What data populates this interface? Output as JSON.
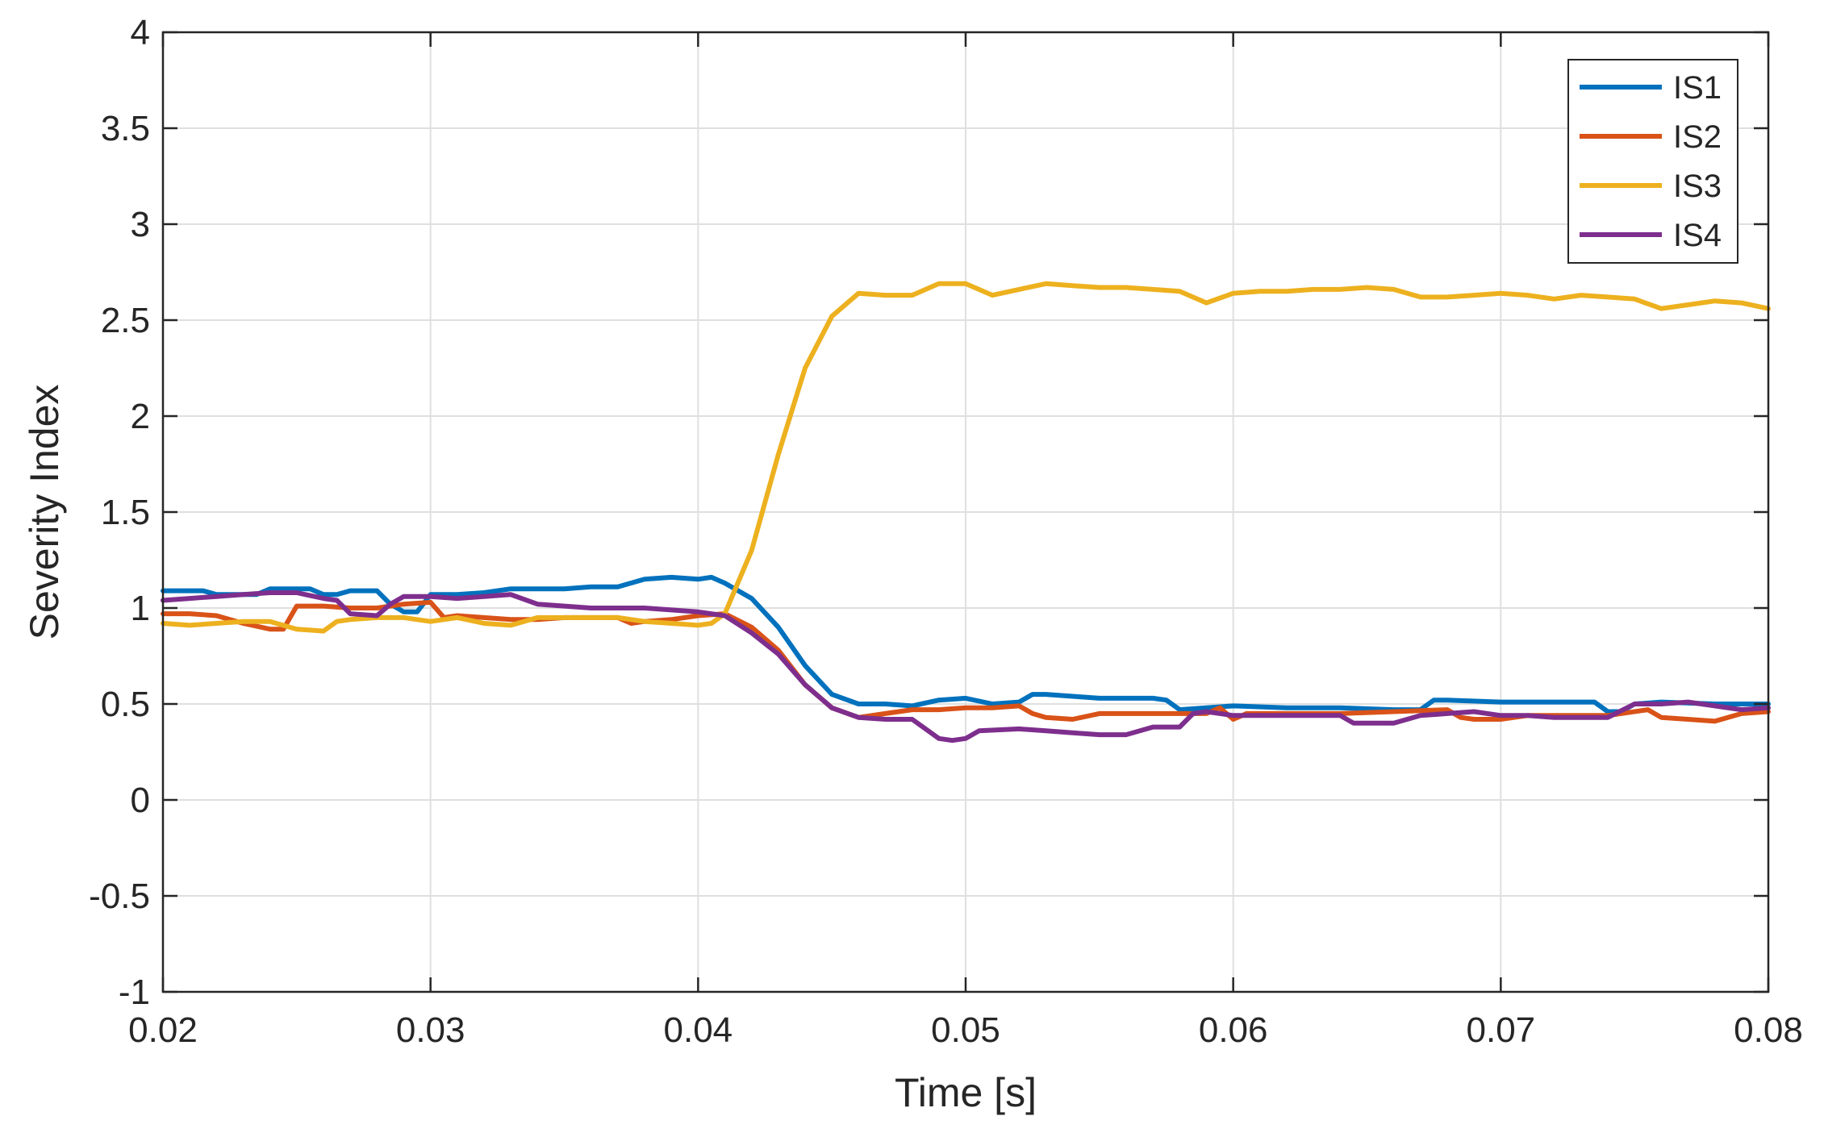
{
  "chart_data": {
    "type": "line",
    "title": "",
    "xlabel": "Time [s]",
    "ylabel": "Severity Index",
    "xlim": [
      0.02,
      0.08
    ],
    "ylim": [
      -1,
      4
    ],
    "x_ticks": [
      0.02,
      0.03,
      0.04,
      0.05,
      0.06,
      0.07,
      0.08
    ],
    "x_tick_labels": [
      "0.02",
      "0.03",
      "0.04",
      "0.05",
      "0.06",
      "0.07",
      "0.08"
    ],
    "y_ticks": [
      -1,
      -0.5,
      0,
      0.5,
      1,
      1.5,
      2,
      2.5,
      3,
      3.5,
      4
    ],
    "y_tick_labels": [
      "-1",
      "-0.5",
      "0",
      "0.5",
      "1",
      "1.5",
      "2",
      "2.5",
      "3",
      "3.5",
      "4"
    ],
    "grid": true,
    "legend_position": "top-right",
    "series": [
      {
        "name": "IS1",
        "color": "#0072BD",
        "points": [
          [
            0.02,
            1.09
          ],
          [
            0.0215,
            1.09
          ],
          [
            0.022,
            1.07
          ],
          [
            0.0235,
            1.07
          ],
          [
            0.024,
            1.1
          ],
          [
            0.0255,
            1.1
          ],
          [
            0.026,
            1.07
          ],
          [
            0.0265,
            1.07
          ],
          [
            0.027,
            1.09
          ],
          [
            0.028,
            1.09
          ],
          [
            0.0285,
            1.02
          ],
          [
            0.029,
            0.98
          ],
          [
            0.0295,
            0.98
          ],
          [
            0.03,
            1.07
          ],
          [
            0.031,
            1.07
          ],
          [
            0.032,
            1.08
          ],
          [
            0.033,
            1.1
          ],
          [
            0.034,
            1.1
          ],
          [
            0.035,
            1.1
          ],
          [
            0.036,
            1.11
          ],
          [
            0.037,
            1.11
          ],
          [
            0.038,
            1.15
          ],
          [
            0.039,
            1.16
          ],
          [
            0.04,
            1.15
          ],
          [
            0.0405,
            1.16
          ],
          [
            0.041,
            1.13
          ],
          [
            0.042,
            1.05
          ],
          [
            0.043,
            0.9
          ],
          [
            0.044,
            0.7
          ],
          [
            0.045,
            0.55
          ],
          [
            0.046,
            0.5
          ],
          [
            0.047,
            0.5
          ],
          [
            0.048,
            0.49
          ],
          [
            0.049,
            0.52
          ],
          [
            0.05,
            0.53
          ],
          [
            0.051,
            0.5
          ],
          [
            0.052,
            0.51
          ],
          [
            0.0525,
            0.55
          ],
          [
            0.053,
            0.55
          ],
          [
            0.054,
            0.54
          ],
          [
            0.055,
            0.53
          ],
          [
            0.057,
            0.53
          ],
          [
            0.0575,
            0.52
          ],
          [
            0.058,
            0.47
          ],
          [
            0.059,
            0.48
          ],
          [
            0.06,
            0.49
          ],
          [
            0.062,
            0.48
          ],
          [
            0.064,
            0.48
          ],
          [
            0.066,
            0.47
          ],
          [
            0.067,
            0.47
          ],
          [
            0.0675,
            0.52
          ],
          [
            0.068,
            0.52
          ],
          [
            0.07,
            0.51
          ],
          [
            0.072,
            0.51
          ],
          [
            0.0735,
            0.51
          ],
          [
            0.074,
            0.46
          ],
          [
            0.0745,
            0.46
          ],
          [
            0.075,
            0.5
          ],
          [
            0.076,
            0.51
          ],
          [
            0.078,
            0.5
          ],
          [
            0.08,
            0.5
          ]
        ]
      },
      {
        "name": "IS2",
        "color": "#D95319",
        "points": [
          [
            0.02,
            0.97
          ],
          [
            0.021,
            0.97
          ],
          [
            0.022,
            0.96
          ],
          [
            0.023,
            0.92
          ],
          [
            0.024,
            0.89
          ],
          [
            0.0245,
            0.89
          ],
          [
            0.025,
            1.01
          ],
          [
            0.026,
            1.01
          ],
          [
            0.027,
            1.0
          ],
          [
            0.028,
            1.0
          ],
          [
            0.029,
            1.02
          ],
          [
            0.03,
            1.03
          ],
          [
            0.0305,
            0.95
          ],
          [
            0.031,
            0.96
          ],
          [
            0.032,
            0.95
          ],
          [
            0.033,
            0.94
          ],
          [
            0.034,
            0.94
          ],
          [
            0.035,
            0.95
          ],
          [
            0.036,
            0.95
          ],
          [
            0.037,
            0.95
          ],
          [
            0.0375,
            0.92
          ],
          [
            0.038,
            0.93
          ],
          [
            0.039,
            0.94
          ],
          [
            0.04,
            0.96
          ],
          [
            0.041,
            0.97
          ],
          [
            0.042,
            0.9
          ],
          [
            0.043,
            0.78
          ],
          [
            0.044,
            0.6
          ],
          [
            0.045,
            0.48
          ],
          [
            0.046,
            0.43
          ],
          [
            0.047,
            0.45
          ],
          [
            0.048,
            0.47
          ],
          [
            0.049,
            0.47
          ],
          [
            0.05,
            0.48
          ],
          [
            0.051,
            0.48
          ],
          [
            0.052,
            0.49
          ],
          [
            0.0525,
            0.45
          ],
          [
            0.053,
            0.43
          ],
          [
            0.054,
            0.42
          ],
          [
            0.055,
            0.45
          ],
          [
            0.056,
            0.45
          ],
          [
            0.058,
            0.45
          ],
          [
            0.059,
            0.45
          ],
          [
            0.0595,
            0.48
          ],
          [
            0.06,
            0.42
          ],
          [
            0.0605,
            0.45
          ],
          [
            0.062,
            0.45
          ],
          [
            0.064,
            0.45
          ],
          [
            0.066,
            0.46
          ],
          [
            0.068,
            0.47
          ],
          [
            0.0685,
            0.43
          ],
          [
            0.069,
            0.42
          ],
          [
            0.07,
            0.42
          ],
          [
            0.071,
            0.44
          ],
          [
            0.072,
            0.44
          ],
          [
            0.074,
            0.44
          ],
          [
            0.0755,
            0.47
          ],
          [
            0.076,
            0.43
          ],
          [
            0.077,
            0.42
          ],
          [
            0.078,
            0.41
          ],
          [
            0.079,
            0.45
          ],
          [
            0.08,
            0.46
          ]
        ]
      },
      {
        "name": "IS3",
        "color": "#EDB120",
        "points": [
          [
            0.02,
            0.92
          ],
          [
            0.021,
            0.91
          ],
          [
            0.022,
            0.92
          ],
          [
            0.023,
            0.93
          ],
          [
            0.024,
            0.93
          ],
          [
            0.025,
            0.89
          ],
          [
            0.026,
            0.88
          ],
          [
            0.0265,
            0.93
          ],
          [
            0.027,
            0.94
          ],
          [
            0.028,
            0.95
          ],
          [
            0.029,
            0.95
          ],
          [
            0.03,
            0.93
          ],
          [
            0.031,
            0.95
          ],
          [
            0.032,
            0.92
          ],
          [
            0.033,
            0.91
          ],
          [
            0.034,
            0.95
          ],
          [
            0.035,
            0.95
          ],
          [
            0.036,
            0.95
          ],
          [
            0.037,
            0.95
          ],
          [
            0.038,
            0.93
          ],
          [
            0.039,
            0.92
          ],
          [
            0.04,
            0.91
          ],
          [
            0.0405,
            0.92
          ],
          [
            0.041,
            0.97
          ],
          [
            0.042,
            1.3
          ],
          [
            0.043,
            1.8
          ],
          [
            0.044,
            2.25
          ],
          [
            0.045,
            2.52
          ],
          [
            0.046,
            2.64
          ],
          [
            0.047,
            2.63
          ],
          [
            0.048,
            2.63
          ],
          [
            0.049,
            2.69
          ],
          [
            0.05,
            2.69
          ],
          [
            0.051,
            2.63
          ],
          [
            0.052,
            2.66
          ],
          [
            0.053,
            2.69
          ],
          [
            0.054,
            2.68
          ],
          [
            0.055,
            2.67
          ],
          [
            0.056,
            2.67
          ],
          [
            0.057,
            2.66
          ],
          [
            0.058,
            2.65
          ],
          [
            0.059,
            2.59
          ],
          [
            0.06,
            2.64
          ],
          [
            0.061,
            2.65
          ],
          [
            0.062,
            2.65
          ],
          [
            0.063,
            2.66
          ],
          [
            0.064,
            2.66
          ],
          [
            0.065,
            2.67
          ],
          [
            0.066,
            2.66
          ],
          [
            0.067,
            2.62
          ],
          [
            0.068,
            2.62
          ],
          [
            0.069,
            2.63
          ],
          [
            0.07,
            2.64
          ],
          [
            0.071,
            2.63
          ],
          [
            0.072,
            2.61
          ],
          [
            0.073,
            2.63
          ],
          [
            0.074,
            2.62
          ],
          [
            0.075,
            2.61
          ],
          [
            0.076,
            2.56
          ],
          [
            0.077,
            2.58
          ],
          [
            0.078,
            2.6
          ],
          [
            0.079,
            2.59
          ],
          [
            0.08,
            2.56
          ]
        ]
      },
      {
        "name": "IS4",
        "color": "#7E2F8E",
        "points": [
          [
            0.02,
            1.04
          ],
          [
            0.021,
            1.05
          ],
          [
            0.022,
            1.06
          ],
          [
            0.023,
            1.07
          ],
          [
            0.024,
            1.08
          ],
          [
            0.025,
            1.08
          ],
          [
            0.026,
            1.05
          ],
          [
            0.0265,
            1.04
          ],
          [
            0.027,
            0.97
          ],
          [
            0.028,
            0.96
          ],
          [
            0.0285,
            1.02
          ],
          [
            0.029,
            1.06
          ],
          [
            0.03,
            1.06
          ],
          [
            0.031,
            1.05
          ],
          [
            0.032,
            1.06
          ],
          [
            0.033,
            1.07
          ],
          [
            0.034,
            1.02
          ],
          [
            0.035,
            1.01
          ],
          [
            0.036,
            1.0
          ],
          [
            0.037,
            1.0
          ],
          [
            0.038,
            1.0
          ],
          [
            0.039,
            0.99
          ],
          [
            0.04,
            0.98
          ],
          [
            0.041,
            0.96
          ],
          [
            0.042,
            0.87
          ],
          [
            0.043,
            0.76
          ],
          [
            0.044,
            0.6
          ],
          [
            0.045,
            0.48
          ],
          [
            0.046,
            0.43
          ],
          [
            0.047,
            0.42
          ],
          [
            0.048,
            0.42
          ],
          [
            0.049,
            0.32
          ],
          [
            0.0495,
            0.31
          ],
          [
            0.05,
            0.32
          ],
          [
            0.0505,
            0.36
          ],
          [
            0.052,
            0.37
          ],
          [
            0.053,
            0.36
          ],
          [
            0.054,
            0.35
          ],
          [
            0.055,
            0.34
          ],
          [
            0.056,
            0.34
          ],
          [
            0.057,
            0.38
          ],
          [
            0.058,
            0.38
          ],
          [
            0.0585,
            0.45
          ],
          [
            0.059,
            0.46
          ],
          [
            0.06,
            0.44
          ],
          [
            0.062,
            0.44
          ],
          [
            0.063,
            0.44
          ],
          [
            0.064,
            0.44
          ],
          [
            0.0645,
            0.4
          ],
          [
            0.065,
            0.4
          ],
          [
            0.066,
            0.4
          ],
          [
            0.067,
            0.44
          ],
          [
            0.068,
            0.45
          ],
          [
            0.069,
            0.46
          ],
          [
            0.07,
            0.44
          ],
          [
            0.071,
            0.44
          ],
          [
            0.072,
            0.43
          ],
          [
            0.073,
            0.43
          ],
          [
            0.074,
            0.43
          ],
          [
            0.075,
            0.5
          ],
          [
            0.076,
            0.5
          ],
          [
            0.077,
            0.51
          ],
          [
            0.078,
            0.49
          ],
          [
            0.079,
            0.47
          ],
          [
            0.08,
            0.48
          ]
        ]
      }
    ]
  }
}
